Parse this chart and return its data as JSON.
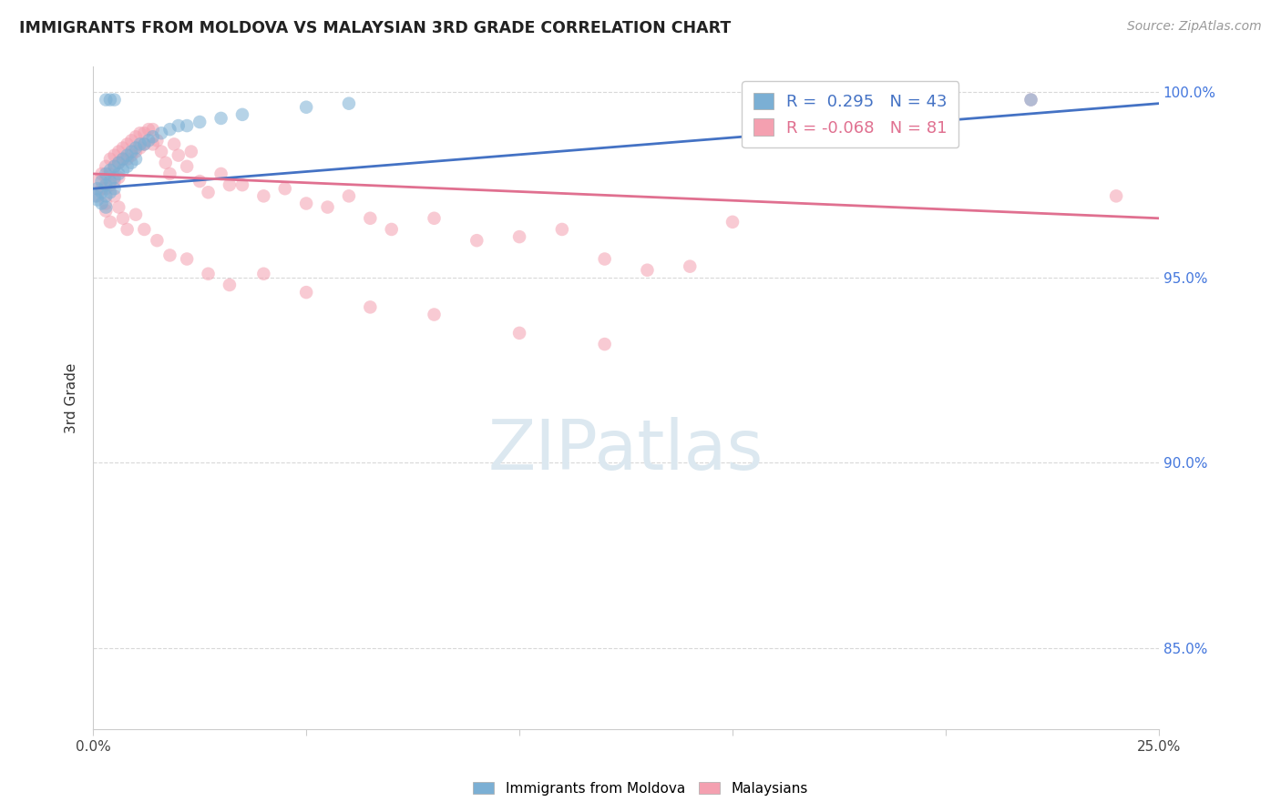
{
  "title": "IMMIGRANTS FROM MOLDOVA VS MALAYSIAN 3RD GRADE CORRELATION CHART",
  "source": "Source: ZipAtlas.com",
  "ylabel": "3rd Grade",
  "ylabel_right_ticks": [
    "85.0%",
    "90.0%",
    "95.0%",
    "100.0%"
  ],
  "ylabel_right_values": [
    0.85,
    0.9,
    0.95,
    1.0
  ],
  "legend1_label": "Immigrants from Moldova",
  "legend2_label": "Malaysians",
  "R_blue": 0.295,
  "N_blue": 43,
  "R_pink": -0.068,
  "N_pink": 81,
  "blue_color": "#7bafd4",
  "pink_color": "#f4a0b0",
  "blue_line_color": "#4472c4",
  "pink_line_color": "#e07090",
  "background_color": "#ffffff",
  "grid_color": "#d8d8d8",
  "blue_scatter_x": [
    0.0005,
    0.001,
    0.001,
    0.002,
    0.002,
    0.002,
    0.003,
    0.003,
    0.003,
    0.003,
    0.003,
    0.004,
    0.004,
    0.004,
    0.004,
    0.005,
    0.005,
    0.005,
    0.005,
    0.006,
    0.006,
    0.007,
    0.007,
    0.008,
    0.008,
    0.009,
    0.009,
    0.01,
    0.01,
    0.011,
    0.012,
    0.013,
    0.014,
    0.016,
    0.018,
    0.02,
    0.022,
    0.025,
    0.03,
    0.035,
    0.05,
    0.06,
    0.22
  ],
  "blue_scatter_y": [
    0.972,
    0.974,
    0.971,
    0.976,
    0.973,
    0.97,
    0.978,
    0.975,
    0.972,
    0.969,
    0.998,
    0.979,
    0.976,
    0.973,
    0.998,
    0.98,
    0.977,
    0.974,
    0.998,
    0.981,
    0.978,
    0.982,
    0.979,
    0.983,
    0.98,
    0.984,
    0.981,
    0.985,
    0.982,
    0.986,
    0.986,
    0.987,
    0.988,
    0.989,
    0.99,
    0.991,
    0.991,
    0.992,
    0.993,
    0.994,
    0.996,
    0.997,
    0.998
  ],
  "pink_scatter_x": [
    0.001,
    0.001,
    0.002,
    0.002,
    0.003,
    0.003,
    0.003,
    0.003,
    0.004,
    0.004,
    0.004,
    0.005,
    0.005,
    0.005,
    0.006,
    0.006,
    0.006,
    0.007,
    0.007,
    0.008,
    0.008,
    0.009,
    0.009,
    0.01,
    0.01,
    0.011,
    0.011,
    0.012,
    0.012,
    0.013,
    0.014,
    0.014,
    0.015,
    0.016,
    0.017,
    0.018,
    0.019,
    0.02,
    0.022,
    0.023,
    0.025,
    0.027,
    0.03,
    0.032,
    0.035,
    0.04,
    0.045,
    0.05,
    0.055,
    0.06,
    0.065,
    0.07,
    0.08,
    0.09,
    0.1,
    0.11,
    0.12,
    0.13,
    0.14,
    0.15,
    0.003,
    0.004,
    0.005,
    0.006,
    0.007,
    0.008,
    0.01,
    0.012,
    0.015,
    0.018,
    0.022,
    0.027,
    0.032,
    0.04,
    0.05,
    0.065,
    0.08,
    0.1,
    0.12,
    0.22,
    0.24
  ],
  "pink_scatter_y": [
    0.976,
    0.972,
    0.978,
    0.974,
    0.98,
    0.977,
    0.974,
    0.97,
    0.982,
    0.978,
    0.975,
    0.983,
    0.98,
    0.976,
    0.984,
    0.981,
    0.977,
    0.985,
    0.982,
    0.986,
    0.982,
    0.987,
    0.983,
    0.988,
    0.984,
    0.989,
    0.985,
    0.989,
    0.986,
    0.99,
    0.99,
    0.986,
    0.987,
    0.984,
    0.981,
    0.978,
    0.986,
    0.983,
    0.98,
    0.984,
    0.976,
    0.973,
    0.978,
    0.975,
    0.975,
    0.972,
    0.974,
    0.97,
    0.969,
    0.972,
    0.966,
    0.963,
    0.966,
    0.96,
    0.961,
    0.963,
    0.955,
    0.952,
    0.953,
    0.965,
    0.968,
    0.965,
    0.972,
    0.969,
    0.966,
    0.963,
    0.967,
    0.963,
    0.96,
    0.956,
    0.955,
    0.951,
    0.948,
    0.951,
    0.946,
    0.942,
    0.94,
    0.935,
    0.932,
    0.998,
    0.972
  ],
  "xlim": [
    0.0,
    0.25
  ],
  "ylim": [
    0.828,
    1.007
  ],
  "blue_trendline_x": [
    0.0,
    0.25
  ],
  "blue_trendline_y": [
    0.974,
    0.997
  ],
  "pink_trendline_x": [
    0.0,
    0.25
  ],
  "pink_trendline_y": [
    0.978,
    0.966
  ]
}
